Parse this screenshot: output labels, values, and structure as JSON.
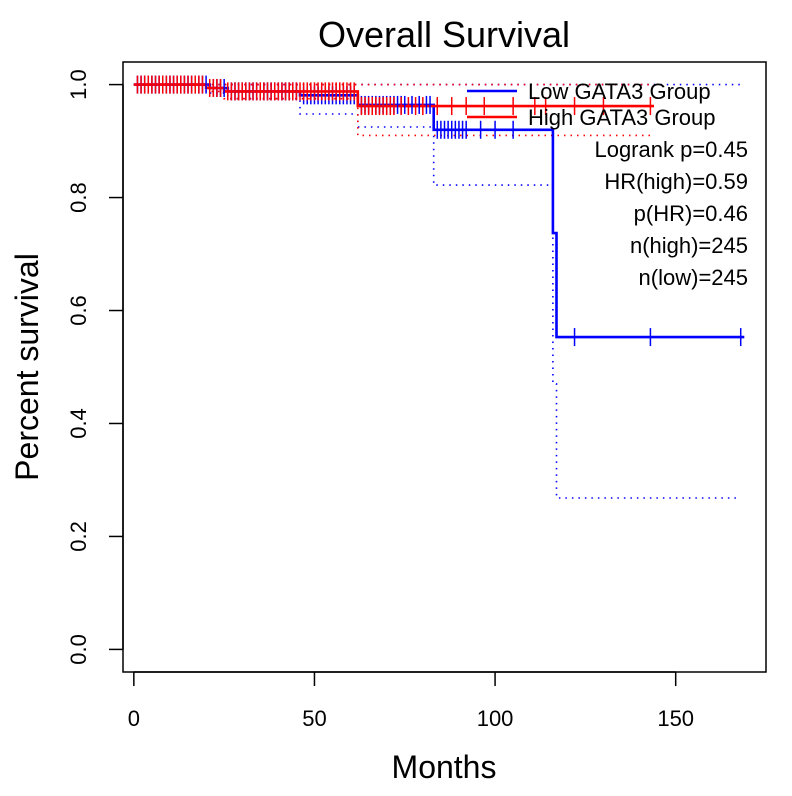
{
  "chart_data": {
    "type": "line",
    "title": "Overall Survival",
    "xlabel": "Months",
    "ylabel": "Percent survival",
    "xlim": [
      -3,
      175
    ],
    "ylim": [
      -0.04,
      1.04
    ],
    "xticks": [
      0,
      50,
      100,
      150
    ],
    "yticks": [
      0.0,
      0.2,
      0.4,
      0.6,
      0.8,
      1.0
    ],
    "xtick_labels": [
      "0",
      "50",
      "100",
      "150"
    ],
    "ytick_labels": [
      "0.0",
      "0.2",
      "0.4",
      "0.6",
      "0.8",
      "1.0"
    ],
    "legend_position": "top-right",
    "series": [
      {
        "name": "Low GATA3 Group",
        "color": "#0000ff",
        "steps": [
          [
            0,
            1.0
          ],
          [
            21,
            0.994
          ],
          [
            26,
            0.988
          ],
          [
            46,
            0.981
          ],
          [
            62,
            0.964
          ],
          [
            83,
            0.92
          ],
          [
            116,
            0.737
          ],
          [
            117,
            0.553
          ],
          [
            169,
            0.553
          ]
        ],
        "ci_upper": [
          [
            0,
            1.0
          ],
          [
            169,
            1.0
          ]
        ],
        "ci_lower": [
          [
            0,
            1.0
          ],
          [
            21,
            0.985
          ],
          [
            26,
            0.975
          ],
          [
            46,
            0.948
          ],
          [
            62,
            0.925
          ],
          [
            83,
            0.822
          ],
          [
            116,
            0.47
          ],
          [
            117,
            0.268
          ],
          [
            167,
            0.268
          ]
        ],
        "censor_times": [
          1,
          2,
          3,
          4,
          5,
          6,
          7,
          8,
          9,
          10,
          11,
          12,
          13,
          14,
          15,
          16,
          17,
          18,
          19,
          20,
          22,
          23,
          24,
          25,
          27,
          28,
          29,
          30,
          31,
          32,
          33,
          34,
          35,
          36,
          37,
          38,
          39,
          40,
          41,
          42,
          43,
          44,
          45,
          47,
          48,
          49,
          50,
          51,
          52,
          53,
          54,
          55,
          56,
          57,
          58,
          59,
          60,
          61,
          63,
          64,
          65,
          66,
          67,
          68,
          69,
          70,
          71,
          72,
          73,
          74,
          75,
          77,
          79,
          81,
          82,
          84,
          85,
          86,
          87,
          88,
          89,
          90,
          91,
          92,
          96,
          100,
          105,
          122,
          143,
          168
        ]
      },
      {
        "name": "High GATA3 Group",
        "color": "#ff0000",
        "steps": [
          [
            0,
            1.0
          ],
          [
            20,
            0.994
          ],
          [
            25,
            0.988
          ],
          [
            62,
            0.962
          ],
          [
            144,
            0.962
          ]
        ],
        "ci_upper": [
          [
            0,
            1.0
          ],
          [
            144,
            1.0
          ]
        ],
        "ci_lower": [
          [
            0,
            1.0
          ],
          [
            20,
            0.988
          ],
          [
            25,
            0.975
          ],
          [
            62,
            0.91
          ],
          [
            144,
            0.91
          ]
        ],
        "censor_times": [
          1,
          2,
          3,
          4,
          5,
          6,
          7,
          8,
          9,
          10,
          11,
          12,
          13,
          14,
          15,
          16,
          17,
          18,
          19,
          21,
          22,
          23,
          24,
          26,
          27,
          28,
          29,
          30,
          31,
          32,
          33,
          34,
          35,
          36,
          37,
          38,
          39,
          40,
          41,
          42,
          43,
          44,
          45,
          46,
          47,
          48,
          49,
          50,
          51,
          52,
          53,
          54,
          55,
          56,
          57,
          58,
          59,
          60,
          61,
          63,
          64,
          65,
          66,
          67,
          68,
          69,
          70,
          71,
          72,
          74,
          76,
          78,
          80,
          84,
          88,
          92,
          97,
          105,
          111,
          114,
          122,
          130,
          143
        ]
      }
    ],
    "annotations": [
      "Logrank p=0.45",
      "HR(high)=0.59",
      "p(HR)=0.46",
      "n(high)=245",
      "n(low)=245"
    ]
  }
}
